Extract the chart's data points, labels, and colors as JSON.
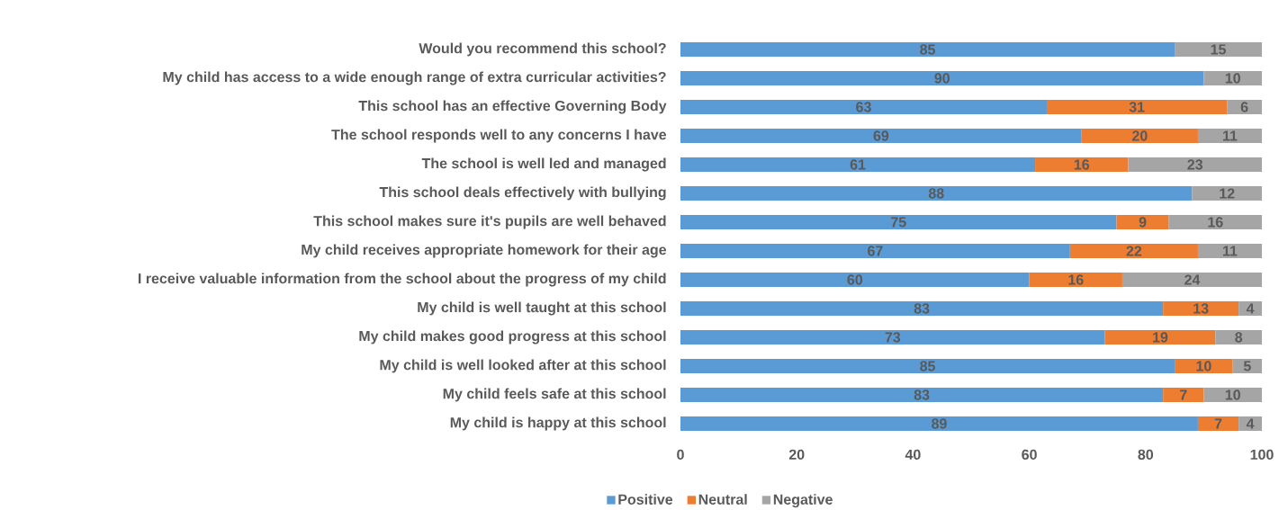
{
  "chart_data": {
    "type": "bar",
    "orientation": "horizontal",
    "stacked": true,
    "legend": "bottom",
    "grid": false,
    "categories": [
      "Would you recommend this school?",
      "My child has access to a wide enough range of extra curricular activities?",
      "This school has an effective Governing Body",
      "The school responds well to any concerns I have",
      "The school is well led and managed",
      "This school deals effectively with bullying",
      "This school makes sure it's pupils are well behaved",
      "My child receives appropriate homework for their age",
      "I receive valuable information from the school about the progress of my child",
      "My child is well taught at this school",
      "My child makes good progress at this school",
      "My child is well looked after at this school",
      "My child feels safe at this school",
      "My child is happy at this school"
    ],
    "xlim": [
      0,
      100
    ],
    "xticks": [
      0,
      20,
      40,
      60,
      80,
      100
    ],
    "series": [
      {
        "name": "Positive",
        "color": "#5b9bd5",
        "values": [
          85,
          90,
          63,
          69,
          61,
          88,
          75,
          67,
          60,
          83,
          73,
          85,
          83,
          89
        ],
        "value_labels": [
          "85",
          "90",
          "63",
          "69",
          "61",
          "88",
          "75",
          "67",
          "60",
          "83",
          "73",
          "85",
          "83",
          "89"
        ]
      },
      {
        "name": "Neutral",
        "color": "#ed7d31",
        "values": [
          null,
          null,
          31,
          20,
          16,
          null,
          9,
          22,
          16,
          13,
          19,
          10,
          7,
          7
        ],
        "value_labels": [
          null,
          null,
          "31",
          "20",
          "16",
          null,
          "9",
          "22",
          "16",
          "13",
          "19",
          "10",
          "7",
          "7"
        ]
      },
      {
        "name": "Negative",
        "color": "#a5a5a5",
        "values": [
          15,
          10,
          6,
          11,
          23,
          12,
          16,
          11,
          24,
          4,
          8,
          5,
          10,
          4
        ],
        "value_labels": [
          "15",
          "10",
          "6",
          "11",
          "23",
          "12",
          "16",
          "11",
          "24",
          "4",
          "8",
          "5",
          "10",
          "4"
        ]
      }
    ]
  }
}
